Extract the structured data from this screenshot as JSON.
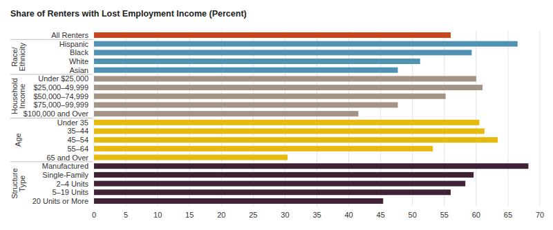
{
  "chart_data": {
    "type": "bar",
    "orientation": "horizontal",
    "title": "Share of Renters with Lost Employment Income (Percent)",
    "categories": [
      "All Renters",
      "Hispanic",
      "Black",
      "White",
      "Asian",
      "Under $25,000",
      "$25,000–49,999",
      "$50,000–74,999",
      "$75,000–99,999",
      "$100,000 and Over",
      "Under 35",
      "35–44",
      "45–54",
      "55–64",
      "65 and Over",
      "Manufactured",
      "Single-Family",
      "2–4 Units",
      "5–19 Units",
      "20 Units or More"
    ],
    "values": [
      56,
      66.5,
      59.3,
      51.2,
      47.7,
      60,
      61,
      55.2,
      47.7,
      41.5,
      60.5,
      61.3,
      63.4,
      53.2,
      30.4,
      68.2,
      59.6,
      58.3,
      56,
      45.4
    ],
    "colors": [
      "#c8461a",
      "#5191b1",
      "#5191b1",
      "#5191b1",
      "#5191b1",
      "#a39485",
      "#a39485",
      "#a39485",
      "#a39485",
      "#a39485",
      "#e6b90f",
      "#e6b90f",
      "#e6b90f",
      "#e6b90f",
      "#e6b90f",
      "#3f2236",
      "#3f2236",
      "#3f2236",
      "#3f2236",
      "#3f2236"
    ],
    "group_labels": [
      null,
      "Race/ Ethnicity",
      "Household Income",
      "Age",
      "Structure Type"
    ],
    "xlim": [
      0,
      70
    ],
    "xticks": [
      0,
      5,
      10,
      15,
      20,
      25,
      30,
      35,
      40,
      45,
      50,
      55,
      60,
      65,
      70
    ],
    "grid": true
  }
}
